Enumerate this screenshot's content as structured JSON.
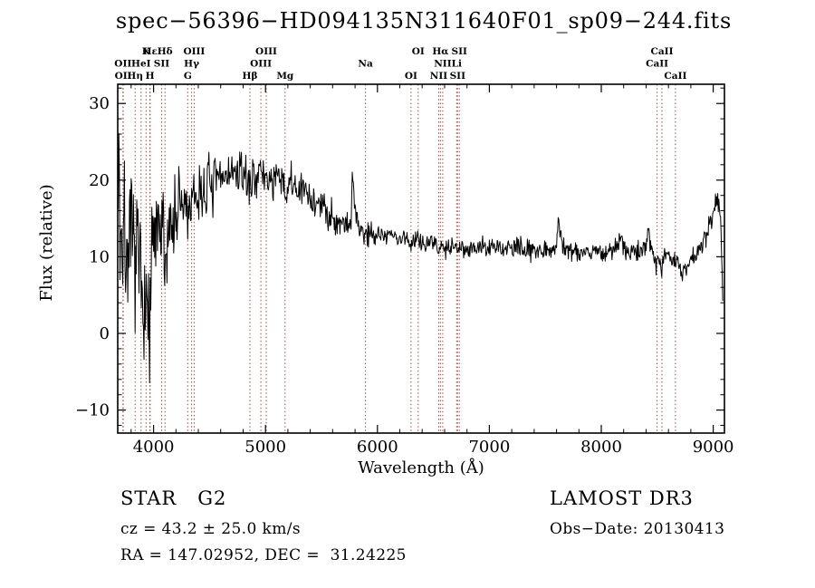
{
  "title": "spec−56396−HD094135N311640F01_sp09−244.fits",
  "footer": {
    "class_label": "STAR   G2",
    "survey": "LAMOST DR3",
    "cz": "cz = 43.2 ± 25.0 km/s",
    "obs_date": "Obs−Date: 20130413",
    "radec": "RA = 147.02952, DEC =  31.24225"
  },
  "chart_data": {
    "type": "line",
    "title": "spec−56396−HD094135N311640F01_sp09−244.fits",
    "xlabel": "Wavelength (Å)",
    "ylabel": "Flux (relative)",
    "xlim": [
      3680,
      9100
    ],
    "ylim": [
      -13,
      32.5
    ],
    "x_ticks": [
      4000,
      5000,
      6000,
      7000,
      8000,
      9000
    ],
    "x_minor_step": 200,
    "y_ticks": [
      -10,
      0,
      10,
      20,
      30
    ],
    "y_minor_step": 2,
    "grid": false,
    "legend": false,
    "line_color": "#000000",
    "marker_line_color": "#a04848",
    "noise_seed": 7,
    "sample_step": 5,
    "noise_regions": [
      [
        3680,
        3995,
        4.2
      ],
      [
        3995,
        4260,
        3.0
      ],
      [
        4260,
        4560,
        2.0
      ],
      [
        4560,
        5460,
        1.3
      ],
      [
        5460,
        5960,
        1.0
      ],
      [
        5960,
        9100,
        0.65
      ]
    ],
    "continuum_anchors": [
      [
        3685,
        20
      ],
      [
        3693,
        28
      ],
      [
        3700,
        10
      ],
      [
        3710,
        16
      ],
      [
        3722,
        10
      ],
      [
        3740,
        14
      ],
      [
        3758,
        9
      ],
      [
        3778,
        13
      ],
      [
        3798,
        10
      ],
      [
        3818,
        12
      ],
      [
        3835,
        8
      ],
      [
        3852,
        11
      ],
      [
        3866,
        9
      ],
      [
        3880,
        7
      ],
      [
        3895,
        4
      ],
      [
        3910,
        8
      ],
      [
        3925,
        4
      ],
      [
        3935,
        1
      ],
      [
        3945,
        5
      ],
      [
        3955,
        0
      ],
      [
        3965,
        -3
      ],
      [
        3972,
        3
      ],
      [
        3982,
        8
      ],
      [
        3992,
        11
      ],
      [
        4005,
        13
      ],
      [
        4025,
        11
      ],
      [
        4045,
        14
      ],
      [
        4065,
        12
      ],
      [
        4085,
        13
      ],
      [
        4098,
        10
      ],
      [
        4108,
        8
      ],
      [
        4122,
        13
      ],
      [
        4142,
        15
      ],
      [
        4162,
        14
      ],
      [
        4182,
        16
      ],
      [
        4205,
        15
      ],
      [
        4225,
        16
      ],
      [
        4245,
        17
      ],
      [
        4265,
        16
      ],
      [
        4285,
        17
      ],
      [
        4305,
        15.5
      ],
      [
        4322,
        17
      ],
      [
        4340,
        16
      ],
      [
        4363,
        17
      ],
      [
        4382,
        18
      ],
      [
        4405,
        18
      ],
      [
        4435,
        18.5
      ],
      [
        4465,
        19
      ],
      [
        4500,
        19.5
      ],
      [
        4540,
        19
      ],
      [
        4580,
        20
      ],
      [
        4620,
        20.5
      ],
      [
        4660,
        21
      ],
      [
        4700,
        21
      ],
      [
        4740,
        20.5
      ],
      [
        4780,
        21
      ],
      [
        4820,
        20.5
      ],
      [
        4852,
        19.5
      ],
      [
        4866,
        19
      ],
      [
        4885,
        20.5
      ],
      [
        4925,
        21
      ],
      [
        4965,
        20.5
      ],
      [
        5005,
        20.5
      ],
      [
        5045,
        20
      ],
      [
        5085,
        20
      ],
      [
        5125,
        20
      ],
      [
        5160,
        19
      ],
      [
        5182,
        18.5
      ],
      [
        5222,
        19.5
      ],
      [
        5262,
        19
      ],
      [
        5302,
        18.5
      ],
      [
        5342,
        18.5
      ],
      [
        5382,
        18
      ],
      [
        5422,
        17.5
      ],
      [
        5462,
        17
      ],
      [
        5502,
        16.5
      ],
      [
        5542,
        16
      ],
      [
        5582,
        15.5
      ],
      [
        5622,
        15
      ],
      [
        5662,
        14.5
      ],
      [
        5705,
        14.5
      ],
      [
        5745,
        14.5
      ],
      [
        5766,
        15
      ],
      [
        5778,
        21
      ],
      [
        5792,
        18
      ],
      [
        5805,
        15
      ],
      [
        5832,
        14
      ],
      [
        5862,
        13.5
      ],
      [
        5892,
        13
      ],
      [
        5922,
        13
      ],
      [
        5955,
        13.2
      ],
      [
        5985,
        13
      ],
      [
        6025,
        13
      ],
      [
        6065,
        12.8
      ],
      [
        6105,
        13
      ],
      [
        6145,
        12.6
      ],
      [
        6185,
        12.4
      ],
      [
        6225,
        12.4
      ],
      [
        6265,
        12.2
      ],
      [
        6302,
        11.8
      ],
      [
        6342,
        12.2
      ],
      [
        6362,
        13.5
      ],
      [
        6382,
        12
      ],
      [
        6425,
        12
      ],
      [
        6465,
        11.8
      ],
      [
        6505,
        11.6
      ],
      [
        6545,
        11.3
      ],
      [
        6565,
        11
      ],
      [
        6592,
        11.4
      ],
      [
        6632,
        11.4
      ],
      [
        6672,
        11.5
      ],
      [
        6712,
        11.2
      ],
      [
        6752,
        11.4
      ],
      [
        6802,
        11.2
      ],
      [
        6852,
        11
      ],
      [
        6902,
        11.3
      ],
      [
        6952,
        11.2
      ],
      [
        7002,
        11
      ],
      [
        7052,
        11.2
      ],
      [
        7102,
        11
      ],
      [
        7152,
        11.3
      ],
      [
        7202,
        11
      ],
      [
        7252,
        11.1
      ],
      [
        7302,
        10.9
      ],
      [
        7352,
        11
      ],
      [
        7402,
        11.2
      ],
      [
        7452,
        11
      ],
      [
        7502,
        10.9
      ],
      [
        7552,
        11
      ],
      [
        7602,
        11.5
      ],
      [
        7618,
        15.5
      ],
      [
        7632,
        13
      ],
      [
        7655,
        11.5
      ],
      [
        7702,
        11
      ],
      [
        7752,
        10.8
      ],
      [
        7802,
        10.7
      ],
      [
        7852,
        10.6
      ],
      [
        7902,
        10.8
      ],
      [
        7952,
        10.7
      ],
      [
        8002,
        10.5
      ],
      [
        8052,
        10.6
      ],
      [
        8102,
        10.8
      ],
      [
        8152,
        11.5
      ],
      [
        8180,
        12.5
      ],
      [
        8205,
        11
      ],
      [
        8252,
        10.5
      ],
      [
        8302,
        10.6
      ],
      [
        8352,
        10.8
      ],
      [
        8400,
        11
      ],
      [
        8415,
        14.5
      ],
      [
        8432,
        12
      ],
      [
        8462,
        10.5
      ],
      [
        8498,
        9.2
      ],
      [
        8522,
        10
      ],
      [
        8542,
        9
      ],
      [
        8572,
        10.2
      ],
      [
        8602,
        10.3
      ],
      [
        8632,
        9.8
      ],
      [
        8662,
        9.2
      ],
      [
        8692,
        8.5
      ],
      [
        8722,
        7.8
      ],
      [
        8752,
        8.5
      ],
      [
        8782,
        9.5
      ],
      [
        8812,
        10
      ],
      [
        8842,
        10.3
      ],
      [
        8872,
        10.8
      ],
      [
        8902,
        11.5
      ],
      [
        8932,
        12.5
      ],
      [
        8962,
        14
      ],
      [
        8992,
        15.5
      ],
      [
        9012,
        16.5
      ],
      [
        9032,
        17.5
      ],
      [
        9052,
        17
      ],
      [
        9065,
        16
      ],
      [
        9075,
        10
      ],
      [
        9085,
        4
      ]
    ],
    "spectral_lines": [
      {
        "label": "OII",
        "wavelength": 3727,
        "row": 2
      },
      {
        "label": "OII",
        "wavelength": 3729,
        "row": 3
      },
      {
        "label": "Hη",
        "wavelength": 3835,
        "row": 3
      },
      {
        "label": "HeI",
        "wavelength": 3889,
        "row": 2
      },
      {
        "label": "K",
        "wavelength": 3933,
        "row": 1
      },
      {
        "label": "H",
        "wavelength": 3968,
        "row": 3
      },
      {
        "label": "Hε",
        "wavelength": 3970,
        "row": 1
      },
      {
        "label": "SII",
        "wavelength": 4072,
        "row": 2
      },
      {
        "label": "Hδ",
        "wavelength": 4102,
        "row": 1
      },
      {
        "label": "G",
        "wavelength": 4305,
        "row": 3
      },
      {
        "label": "Hγ",
        "wavelength": 4340,
        "row": 2
      },
      {
        "label": "OIII",
        "wavelength": 4363,
        "row": 1
      },
      {
        "label": "Hβ",
        "wavelength": 4861,
        "row": 3
      },
      {
        "label": "OIII",
        "wavelength": 4959,
        "row": 2
      },
      {
        "label": "OIII",
        "wavelength": 5007,
        "row": 1
      },
      {
        "label": "Mg",
        "wavelength": 5175,
        "row": 3
      },
      {
        "label": "Na",
        "wavelength": 5893,
        "row": 2
      },
      {
        "label": "OI",
        "wavelength": 6300,
        "row": 3
      },
      {
        "label": "OI",
        "wavelength": 6364,
        "row": 1
      },
      {
        "label": "NII",
        "wavelength": 6548,
        "row": 3
      },
      {
        "label": "Hα",
        "wavelength": 6563,
        "row": 1
      },
      {
        "label": "NII",
        "wavelength": 6583,
        "row": 2
      },
      {
        "label": "Li",
        "wavelength": 6708,
        "row": 2
      },
      {
        "label": "SII",
        "wavelength": 6716,
        "row": 3
      },
      {
        "label": "SII",
        "wavelength": 6731,
        "row": 1
      },
      {
        "label": "CaII",
        "wavelength": 8498,
        "row": 2
      },
      {
        "label": "CaII",
        "wavelength": 8542,
        "row": 1
      },
      {
        "label": "CaII",
        "wavelength": 8662,
        "row": 3
      }
    ]
  }
}
